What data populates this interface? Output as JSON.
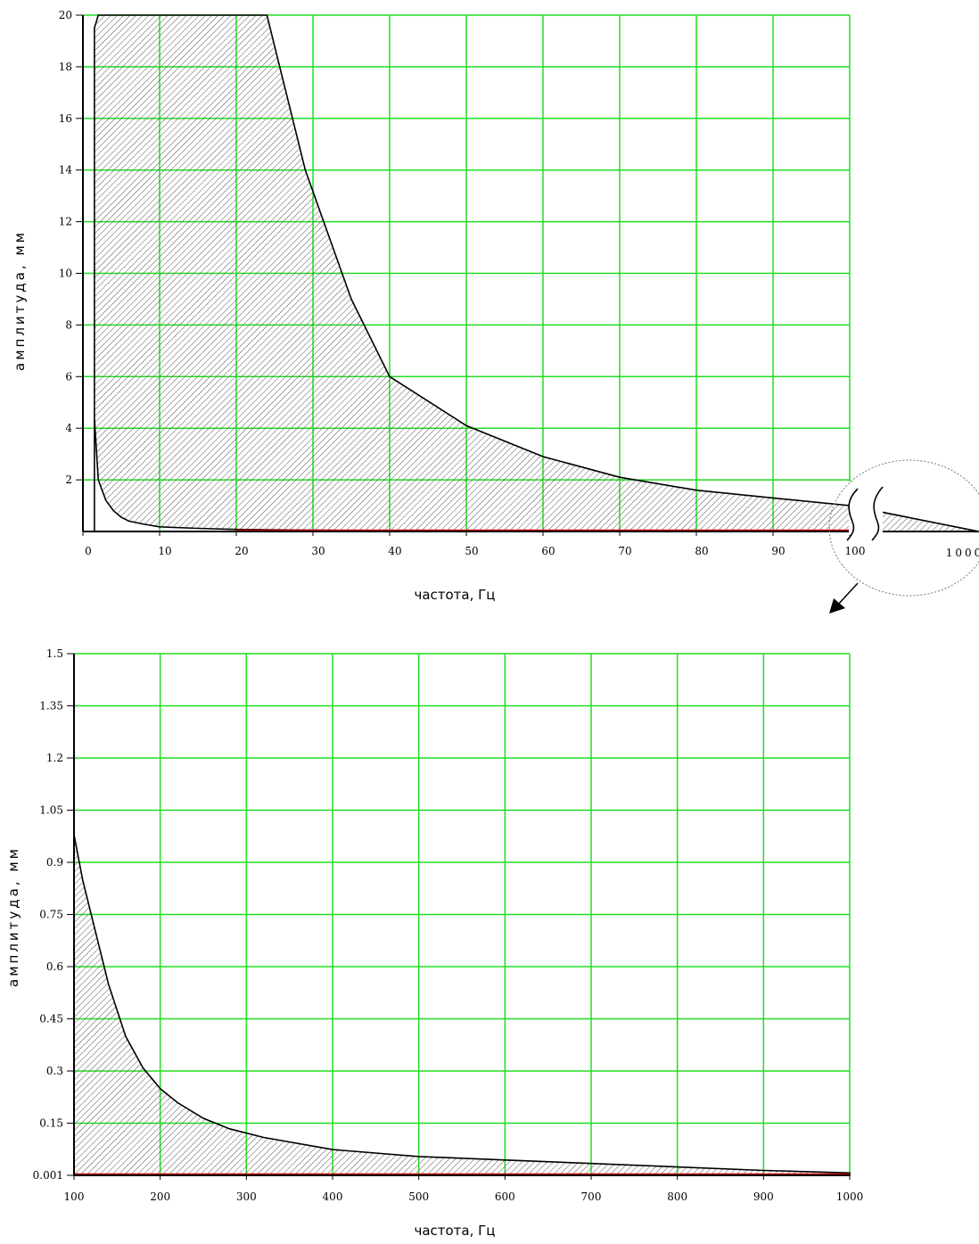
{
  "colors": {
    "grid": "#22dd22",
    "outline": "#000000",
    "limit_line": "#cc0000",
    "hatch": "#555555",
    "zoom_marker": "#777777"
  },
  "chart_data": [
    {
      "type": "area",
      "title": "",
      "xlabel": "частота, Гц",
      "ylabel": "амплитуда, мм",
      "xlim": [
        0,
        100
      ],
      "ylim": [
        0,
        20
      ],
      "x_ticks": [
        "0",
        "10",
        "20",
        "30",
        "40",
        "50",
        "60",
        "70",
        "80",
        "90",
        "100"
      ],
      "y_ticks": [
        "2",
        "4",
        "6",
        "8",
        "10",
        "12",
        "14",
        "16",
        "18",
        "20"
      ],
      "extra_x_tick": "1000",
      "grid": true,
      "axis_break": true,
      "zoom_marker": true,
      "upper_boundary": {
        "x": [
          1.5,
          1.5,
          1.5,
          1.5,
          2,
          3,
          5,
          7,
          10,
          14,
          19,
          24,
          29,
          35,
          40,
          50,
          60,
          70,
          80,
          90,
          100
        ],
        "y": [
          0,
          3,
          6,
          19.5,
          20,
          20,
          20,
          20,
          20,
          20,
          20,
          20,
          14,
          9,
          6,
          4.1,
          2.9,
          2.1,
          1.6,
          1.3,
          1.0
        ]
      },
      "lower_boundary": {
        "x": [
          1.5,
          2,
          3,
          4,
          5,
          6,
          8,
          10,
          15,
          20,
          30,
          50,
          100
        ],
        "y": [
          4.4,
          2.0,
          1.2,
          0.8,
          0.55,
          0.4,
          0.28,
          0.18,
          0.12,
          0.08,
          0.05,
          0.02,
          0.01
        ]
      },
      "break_tail": {
        "x": [
          100,
          1000
        ],
        "y": [
          1.0,
          0.01
        ]
      }
    },
    {
      "type": "area",
      "title": "",
      "xlabel": "частота, Гц",
      "ylabel": "амплитуда, мм",
      "xlim": [
        100,
        1000
      ],
      "ylim": [
        0.001,
        1.5
      ],
      "x_ticks": [
        "100",
        "200",
        "300",
        "400",
        "500",
        "600",
        "700",
        "800",
        "900",
        "1000"
      ],
      "y_ticks": [
        "0.001",
        "0.15",
        "0.3",
        "0.45",
        "0.6",
        "0.75",
        "0.9",
        "1.05",
        "1.2",
        "1.35",
        "1.5"
      ],
      "grid": true,
      "upper_boundary": {
        "x": [
          100,
          110,
          125,
          140,
          160,
          180,
          200,
          220,
          250,
          280,
          320,
          400,
          500,
          600,
          700,
          800,
          900,
          1000
        ],
        "y": [
          0.98,
          0.85,
          0.7,
          0.55,
          0.4,
          0.31,
          0.25,
          0.21,
          0.165,
          0.135,
          0.11,
          0.075,
          0.055,
          0.045,
          0.035,
          0.025,
          0.015,
          0.008
        ]
      },
      "lower_boundary": {
        "x": [
          100,
          1000
        ],
        "y": [
          0.001,
          0.001
        ]
      }
    }
  ]
}
